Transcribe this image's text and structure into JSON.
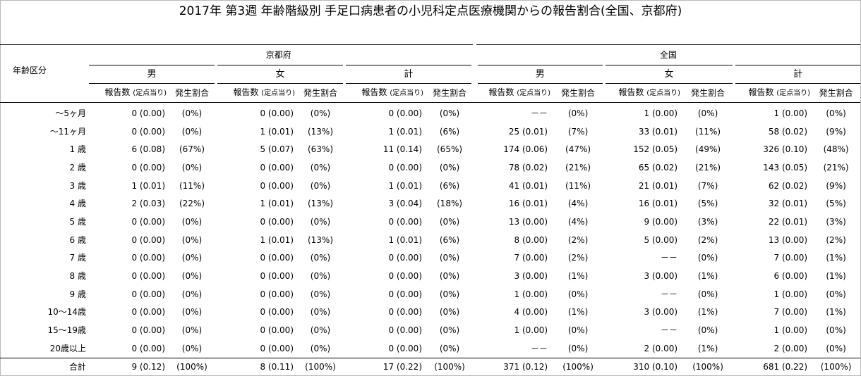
{
  "title": "2017年 第3週 年齢階級別 手足口病患者の小児科定点医療機関からの報告割合(全国、京都府)",
  "row_header": "年齢区分",
  "regions": [
    "京都府",
    "全国"
  ],
  "sexes": [
    "男",
    "女",
    "計"
  ],
  "col_report": "報告数",
  "col_report_note": "(定点当り)",
  "col_ratio": "発生割合",
  "rows": [
    {
      "age": "～5ヶ月",
      "cells": [
        [
          "0 (0.00)",
          "(0%)"
        ],
        [
          "0 (0.00)",
          "(0%)"
        ],
        [
          "0 (0.00)",
          "(0%)"
        ],
        [
          "－－",
          "(0%)"
        ],
        [
          "1 (0.00)",
          "(0%)"
        ],
        [
          "1 (0.00)",
          "(0%)"
        ]
      ]
    },
    {
      "age": "～11ヶ月",
      "cells": [
        [
          "0 (0.00)",
          "(0%)"
        ],
        [
          "1 (0.01)",
          "(13%)"
        ],
        [
          "1 (0.01)",
          "(6%)"
        ],
        [
          "25 (0.01)",
          "(7%)"
        ],
        [
          "33 (0.01)",
          "(11%)"
        ],
        [
          "58 (0.02)",
          "(9%)"
        ]
      ]
    },
    {
      "age": "1 歳",
      "cells": [
        [
          "6 (0.08)",
          "(67%)"
        ],
        [
          "5 (0.07)",
          "(63%)"
        ],
        [
          "11 (0.14)",
          "(65%)"
        ],
        [
          "174 (0.06)",
          "(47%)"
        ],
        [
          "152 (0.05)",
          "(49%)"
        ],
        [
          "326 (0.10)",
          "(48%)"
        ]
      ]
    },
    {
      "age": "2 歳",
      "cells": [
        [
          "0 (0.00)",
          "(0%)"
        ],
        [
          "0 (0.00)",
          "(0%)"
        ],
        [
          "0 (0.00)",
          "(0%)"
        ],
        [
          "78 (0.02)",
          "(21%)"
        ],
        [
          "65 (0.02)",
          "(21%)"
        ],
        [
          "143 (0.05)",
          "(21%)"
        ]
      ]
    },
    {
      "age": "3 歳",
      "cells": [
        [
          "1 (0.01)",
          "(11%)"
        ],
        [
          "0 (0.00)",
          "(0%)"
        ],
        [
          "1 (0.01)",
          "(6%)"
        ],
        [
          "41 (0.01)",
          "(11%)"
        ],
        [
          "21 (0.01)",
          "(7%)"
        ],
        [
          "62 (0.02)",
          "(9%)"
        ]
      ]
    },
    {
      "age": "4 歳",
      "cells": [
        [
          "2 (0.03)",
          "(22%)"
        ],
        [
          "1 (0.01)",
          "(13%)"
        ],
        [
          "3 (0.04)",
          "(18%)"
        ],
        [
          "16 (0.01)",
          "(4%)"
        ],
        [
          "16 (0.01)",
          "(5%)"
        ],
        [
          "32 (0.01)",
          "(5%)"
        ]
      ]
    },
    {
      "age": "5 歳",
      "cells": [
        [
          "0 (0.00)",
          "(0%)"
        ],
        [
          "0 (0.00)",
          "(0%)"
        ],
        [
          "0 (0.00)",
          "(0%)"
        ],
        [
          "13 (0.00)",
          "(4%)"
        ],
        [
          "9 (0.00)",
          "(3%)"
        ],
        [
          "22 (0.01)",
          "(3%)"
        ]
      ]
    },
    {
      "age": "6 歳",
      "cells": [
        [
          "0 (0.00)",
          "(0%)"
        ],
        [
          "1 (0.01)",
          "(13%)"
        ],
        [
          "1 (0.01)",
          "(6%)"
        ],
        [
          "8 (0.00)",
          "(2%)"
        ],
        [
          "5 (0.00)",
          "(2%)"
        ],
        [
          "13 (0.00)",
          "(2%)"
        ]
      ]
    },
    {
      "age": "7 歳",
      "cells": [
        [
          "0 (0.00)",
          "(0%)"
        ],
        [
          "0 (0.00)",
          "(0%)"
        ],
        [
          "0 (0.00)",
          "(0%)"
        ],
        [
          "7 (0.00)",
          "(2%)"
        ],
        [
          "－－",
          "(0%)"
        ],
        [
          "7 (0.00)",
          "(1%)"
        ]
      ]
    },
    {
      "age": "8 歳",
      "cells": [
        [
          "0 (0.00)",
          "(0%)"
        ],
        [
          "0 (0.00)",
          "(0%)"
        ],
        [
          "0 (0.00)",
          "(0%)"
        ],
        [
          "3 (0.00)",
          "(1%)"
        ],
        [
          "3 (0.00)",
          "(1%)"
        ],
        [
          "6 (0.00)",
          "(1%)"
        ]
      ]
    },
    {
      "age": "9 歳",
      "cells": [
        [
          "0 (0.00)",
          "(0%)"
        ],
        [
          "0 (0.00)",
          "(0%)"
        ],
        [
          "0 (0.00)",
          "(0%)"
        ],
        [
          "1 (0.00)",
          "(0%)"
        ],
        [
          "－－",
          "(0%)"
        ],
        [
          "1 (0.00)",
          "(0%)"
        ]
      ]
    },
    {
      "age": "10～14歳",
      "cells": [
        [
          "0 (0.00)",
          "(0%)"
        ],
        [
          "0 (0.00)",
          "(0%)"
        ],
        [
          "0 (0.00)",
          "(0%)"
        ],
        [
          "4 (0.00)",
          "(1%)"
        ],
        [
          "3 (0.00)",
          "(1%)"
        ],
        [
          "7 (0.00)",
          "(1%)"
        ]
      ]
    },
    {
      "age": "15～19歳",
      "cells": [
        [
          "0 (0.00)",
          "(0%)"
        ],
        [
          "0 (0.00)",
          "(0%)"
        ],
        [
          "0 (0.00)",
          "(0%)"
        ],
        [
          "1 (0.00)",
          "(0%)"
        ],
        [
          "－－",
          "(0%)"
        ],
        [
          "1 (0.00)",
          "(0%)"
        ]
      ]
    },
    {
      "age": "20歳以上",
      "cells": [
        [
          "0 (0.00)",
          "(0%)"
        ],
        [
          "0 (0.00)",
          "(0%)"
        ],
        [
          "0 (0.00)",
          "(0%)"
        ],
        [
          "－－",
          "(0%)"
        ],
        [
          "2 (0.00)",
          "(1%)"
        ],
        [
          "2 (0.00)",
          "(0%)"
        ]
      ]
    }
  ],
  "total": {
    "age": "合計",
    "cells": [
      [
        "9 (0.12)",
        "(100%)"
      ],
      [
        "8 (0.11)",
        "(100%)"
      ],
      [
        "17 (0.22)",
        "(100%)"
      ],
      [
        "371 (0.12)",
        "(100%)"
      ],
      [
        "310 (0.10)",
        "(100%)"
      ],
      [
        "681 (0.22)",
        "(100%)"
      ]
    ]
  }
}
